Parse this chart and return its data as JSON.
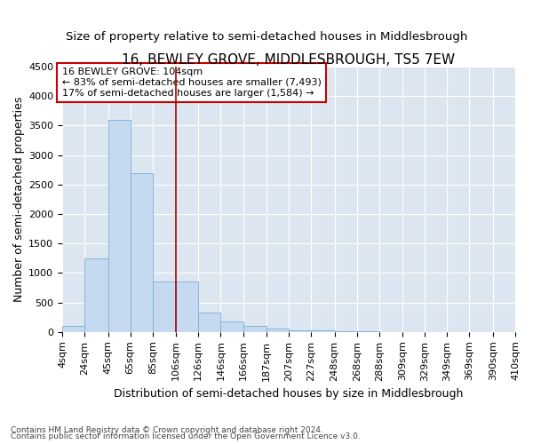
{
  "title": "16, BEWLEY GROVE, MIDDLESBROUGH, TS5 7EW",
  "subtitle": "Size of property relative to semi-detached houses in Middlesbrough",
  "xlabel": "Distribution of semi-detached houses by size in Middlesbrough",
  "ylabel": "Number of semi-detached properties",
  "footnote1": "Contains HM Land Registry data © Crown copyright and database right 2024.",
  "footnote2": "Contains public sector information licensed under the Open Government Licence v3.0.",
  "annotation_title": "16 BEWLEY GROVE: 104sqm",
  "annotation_line1": "← 83% of semi-detached houses are smaller (7,493)",
  "annotation_line2": "17% of semi-detached houses are larger (1,584) →",
  "property_size": 104,
  "bar_left_edges": [
    4,
    24,
    45,
    65,
    85,
    106,
    126,
    146,
    166,
    187,
    207,
    227,
    248,
    268,
    288,
    309,
    329,
    349,
    369,
    390
  ],
  "bar_widths": [
    20,
    21,
    20,
    20,
    21,
    20,
    20,
    20,
    21,
    20,
    20,
    21,
    20,
    20,
    21,
    20,
    20,
    20,
    21,
    20
  ],
  "bar_heights": [
    100,
    1250,
    3600,
    2700,
    860,
    860,
    330,
    175,
    100,
    60,
    30,
    20,
    10,
    5,
    2,
    1,
    0,
    0,
    0,
    0
  ],
  "bar_color": "#c5d9f0",
  "bar_edge_color": "#7bafd4",
  "vline_color": "#aa0000",
  "vline_x": 106,
  "annotation_box_color": "#ffffff",
  "annotation_box_edge": "#cc0000",
  "bg_color": "#dce6f0",
  "ylim": [
    0,
    4500
  ],
  "yticks": [
    0,
    500,
    1000,
    1500,
    2000,
    2500,
    3000,
    3500,
    4000,
    4500
  ],
  "x_tick_labels": [
    "4sqm",
    "24sqm",
    "45sqm",
    "65sqm",
    "85sqm",
    "106sqm",
    "126sqm",
    "146sqm",
    "166sqm",
    "187sqm",
    "207sqm",
    "227sqm",
    "248sqm",
    "268sqm",
    "288sqm",
    "309sqm",
    "329sqm",
    "349sqm",
    "369sqm",
    "390sqm",
    "410sqm"
  ],
  "title_fontsize": 11,
  "subtitle_fontsize": 9.5,
  "axis_label_fontsize": 9,
  "tick_fontsize": 8,
  "annotation_fontsize": 8
}
